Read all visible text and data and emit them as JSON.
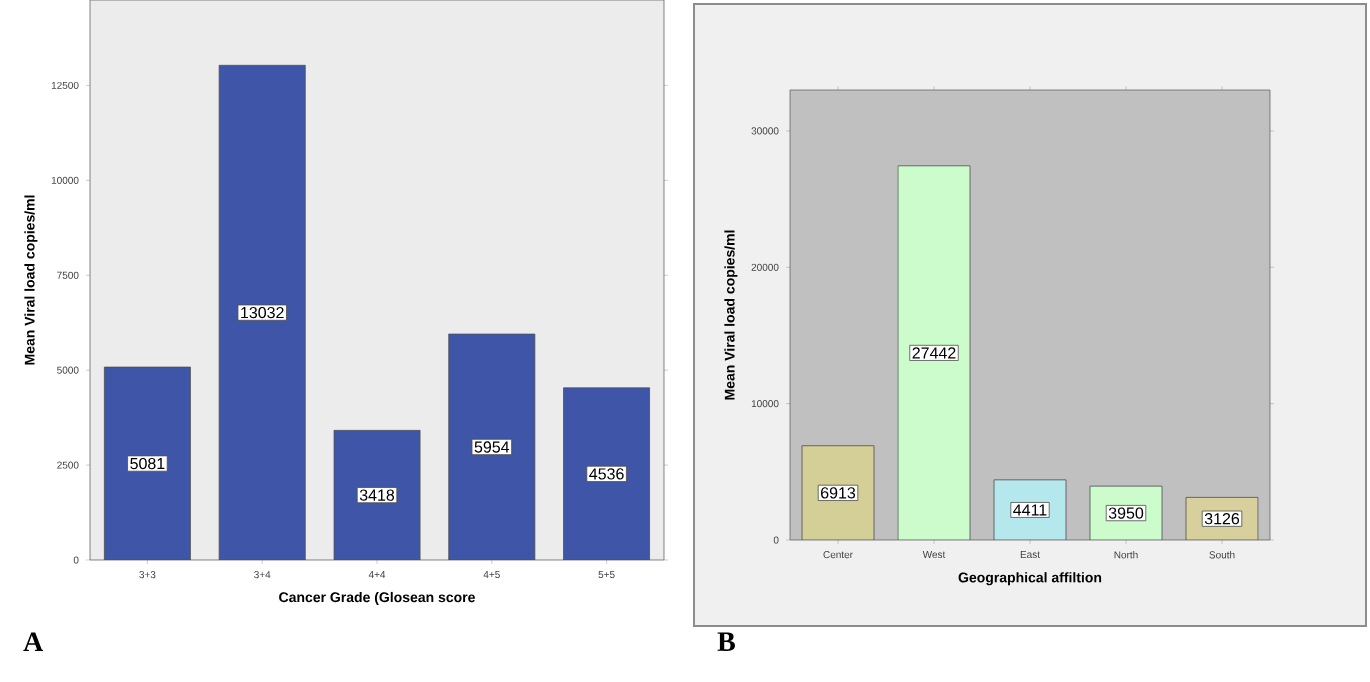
{
  "chart_data": [
    {
      "type": "bar",
      "categories": [
        "3+3",
        "3+4",
        "4+4",
        "4+5",
        "5+5"
      ],
      "values": [
        5081,
        13032,
        3418,
        5954,
        4536
      ],
      "color": "#3f56a8",
      "ylim": [
        0,
        14750
      ],
      "yticks": [
        0,
        2500,
        5000,
        7500,
        10000,
        12500
      ],
      "xlabel": "Cancer Grade (Glosean score",
      "ylabel": "Mean Viral load copies/ml",
      "data_labels": true,
      "annotations": [
        "A"
      ]
    },
    {
      "type": "bar",
      "categories": [
        "Center",
        "West",
        "East",
        "North",
        "South"
      ],
      "values": [
        6913,
        27442,
        4411,
        3950,
        3126
      ],
      "colors": [
        "#d4cf96",
        "#ccfccc",
        "#b4e8ec",
        "#ccfccc",
        "#d8d09c"
      ],
      "ylim": [
        0,
        33000
      ],
      "yticks": [
        0,
        10000,
        20000,
        30000
      ],
      "xlabel": "Geographical affiltion",
      "ylabel": "Mean Viral load copies/ml",
      "data_labels": true,
      "annotations": [
        "B"
      ]
    }
  ]
}
